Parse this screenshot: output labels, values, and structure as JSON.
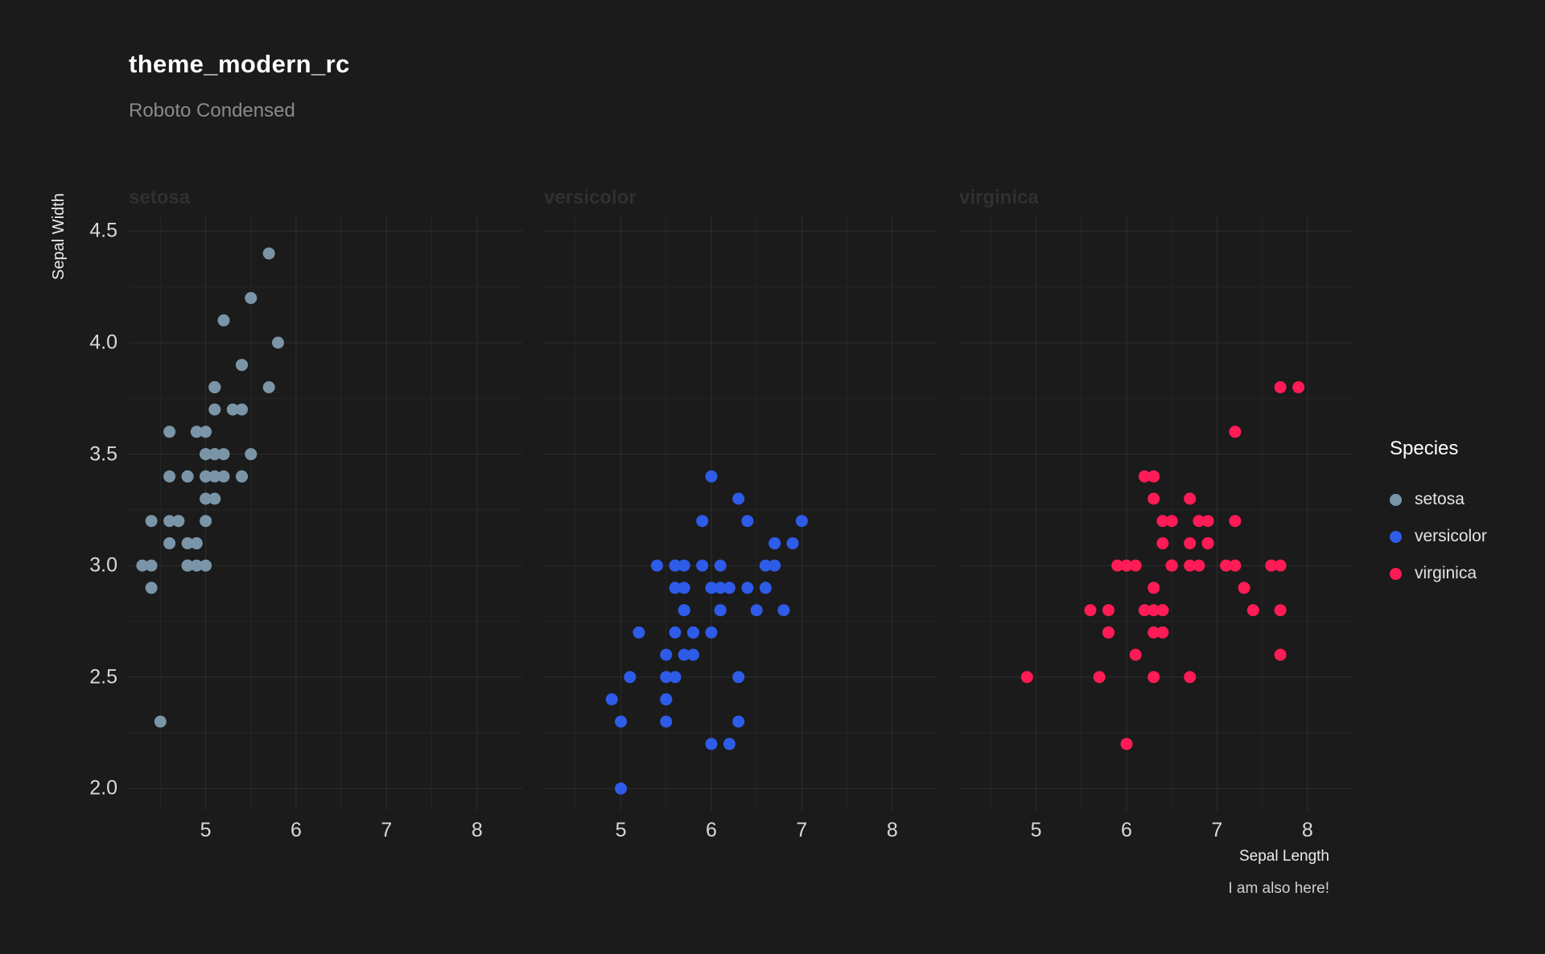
{
  "title": "theme_modern_rc",
  "subtitle": "Roboto Condensed",
  "caption": "I am also here!",
  "axes": {
    "x_label": "Sepal Length",
    "y_label": "Sepal Width"
  },
  "legend": {
    "title": "Species",
    "items": [
      {
        "label": "setosa",
        "color": "#7A95A7"
      },
      {
        "label": "versicolor",
        "color": "#2E5BE8"
      },
      {
        "label": "virginica",
        "color": "#FF1B55"
      }
    ]
  },
  "colors": {
    "background": "#1b1b1b",
    "grid_major": "#2e2e2e",
    "grid_minor": "#252525",
    "title": "#ffffff",
    "subtitle": "#8a8a8a",
    "axis_text": "#d9d9d9",
    "strip_text": "#303030",
    "setosa": "#7A95A7",
    "versicolor": "#2E5BE8",
    "virginica": "#FF1B55"
  },
  "chart_data": {
    "type": "scatter",
    "facets": [
      "setosa",
      "versicolor",
      "virginica"
    ],
    "x_ticks": [
      5,
      6,
      7,
      8
    ],
    "x_tick_labels": [
      "5",
      "6",
      "7",
      "8"
    ],
    "y_ticks": [
      2.0,
      2.5,
      3.0,
      3.5,
      4.0,
      4.5
    ],
    "y_tick_labels": [
      "2.0",
      "2.5",
      "3.0",
      "3.5",
      "4.0",
      "4.5"
    ],
    "xlim": [
      4.15,
      8.5
    ],
    "ylim": [
      1.9,
      4.57
    ],
    "xlabel": "Sepal Length",
    "ylabel": "Sepal Width",
    "grid": true,
    "legend_position": "right",
    "series": [
      {
        "name": "setosa",
        "color": "#7A95A7",
        "points": [
          [
            5.1,
            3.5
          ],
          [
            4.9,
            3.0
          ],
          [
            4.7,
            3.2
          ],
          [
            4.6,
            3.1
          ],
          [
            5.0,
            3.6
          ],
          [
            5.4,
            3.9
          ],
          [
            4.6,
            3.4
          ],
          [
            5.0,
            3.4
          ],
          [
            4.4,
            2.9
          ],
          [
            4.9,
            3.1
          ],
          [
            5.4,
            3.7
          ],
          [
            4.8,
            3.4
          ],
          [
            4.8,
            3.0
          ],
          [
            4.3,
            3.0
          ],
          [
            5.8,
            4.0
          ],
          [
            5.7,
            4.4
          ],
          [
            5.4,
            3.9
          ],
          [
            5.1,
            3.5
          ],
          [
            5.7,
            3.8
          ],
          [
            5.1,
            3.8
          ],
          [
            5.4,
            3.4
          ],
          [
            5.1,
            3.7
          ],
          [
            4.6,
            3.6
          ],
          [
            5.1,
            3.3
          ],
          [
            4.8,
            3.4
          ],
          [
            5.0,
            3.0
          ],
          [
            5.0,
            3.4
          ],
          [
            5.2,
            3.5
          ],
          [
            5.2,
            3.4
          ],
          [
            4.7,
            3.2
          ],
          [
            4.8,
            3.1
          ],
          [
            5.4,
            3.4
          ],
          [
            5.2,
            4.1
          ],
          [
            5.5,
            4.2
          ],
          [
            4.9,
            3.1
          ],
          [
            5.0,
            3.2
          ],
          [
            5.5,
            3.5
          ],
          [
            4.9,
            3.6
          ],
          [
            4.4,
            3.0
          ],
          [
            5.1,
            3.4
          ],
          [
            5.0,
            3.5
          ],
          [
            4.5,
            2.3
          ],
          [
            4.4,
            3.2
          ],
          [
            5.0,
            3.5
          ],
          [
            5.1,
            3.8
          ],
          [
            4.8,
            3.0
          ],
          [
            5.1,
            3.8
          ],
          [
            4.6,
            3.2
          ],
          [
            5.3,
            3.7
          ],
          [
            5.0,
            3.3
          ]
        ]
      },
      {
        "name": "versicolor",
        "color": "#2E5BE8",
        "points": [
          [
            7.0,
            3.2
          ],
          [
            6.4,
            3.2
          ],
          [
            6.9,
            3.1
          ],
          [
            5.5,
            2.3
          ],
          [
            6.5,
            2.8
          ],
          [
            5.7,
            2.8
          ],
          [
            6.3,
            3.3
          ],
          [
            4.9,
            2.4
          ],
          [
            6.6,
            2.9
          ],
          [
            5.2,
            2.7
          ],
          [
            5.0,
            2.0
          ],
          [
            5.9,
            3.0
          ],
          [
            6.0,
            2.2
          ],
          [
            6.1,
            2.9
          ],
          [
            5.6,
            2.9
          ],
          [
            6.7,
            3.1
          ],
          [
            5.6,
            3.0
          ],
          [
            5.8,
            2.7
          ],
          [
            6.2,
            2.2
          ],
          [
            5.6,
            2.5
          ],
          [
            5.9,
            3.2
          ],
          [
            6.1,
            2.8
          ],
          [
            6.3,
            2.5
          ],
          [
            6.1,
            2.8
          ],
          [
            6.4,
            2.9
          ],
          [
            6.6,
            3.0
          ],
          [
            6.8,
            2.8
          ],
          [
            6.7,
            3.0
          ],
          [
            6.0,
            2.9
          ],
          [
            5.7,
            2.6
          ],
          [
            5.5,
            2.4
          ],
          [
            5.5,
            2.4
          ],
          [
            5.8,
            2.7
          ],
          [
            6.0,
            2.7
          ],
          [
            5.4,
            3.0
          ],
          [
            6.0,
            3.4
          ],
          [
            6.7,
            3.1
          ],
          [
            6.3,
            2.3
          ],
          [
            5.6,
            3.0
          ],
          [
            5.5,
            2.5
          ],
          [
            5.5,
            2.6
          ],
          [
            6.1,
            3.0
          ],
          [
            5.8,
            2.6
          ],
          [
            5.0,
            2.3
          ],
          [
            5.6,
            2.7
          ],
          [
            5.7,
            3.0
          ],
          [
            5.7,
            2.9
          ],
          [
            6.2,
            2.9
          ],
          [
            5.1,
            2.5
          ],
          [
            5.7,
            2.8
          ]
        ]
      },
      {
        "name": "virginica",
        "color": "#FF1B55",
        "points": [
          [
            6.3,
            3.3
          ],
          [
            5.8,
            2.7
          ],
          [
            7.1,
            3.0
          ],
          [
            6.3,
            2.9
          ],
          [
            6.5,
            3.0
          ],
          [
            7.6,
            3.0
          ],
          [
            4.9,
            2.5
          ],
          [
            7.3,
            2.9
          ],
          [
            6.7,
            2.5
          ],
          [
            7.2,
            3.6
          ],
          [
            6.5,
            3.2
          ],
          [
            6.4,
            2.7
          ],
          [
            6.8,
            3.0
          ],
          [
            5.7,
            2.5
          ],
          [
            5.8,
            2.8
          ],
          [
            6.4,
            3.2
          ],
          [
            6.5,
            3.0
          ],
          [
            7.7,
            3.8
          ],
          [
            7.7,
            2.6
          ],
          [
            6.0,
            2.2
          ],
          [
            6.9,
            3.2
          ],
          [
            5.6,
            2.8
          ],
          [
            7.7,
            2.8
          ],
          [
            6.3,
            2.7
          ],
          [
            6.7,
            3.3
          ],
          [
            7.2,
            3.2
          ],
          [
            6.2,
            2.8
          ],
          [
            6.1,
            3.0
          ],
          [
            6.4,
            2.8
          ],
          [
            7.2,
            3.0
          ],
          [
            7.4,
            2.8
          ],
          [
            7.9,
            3.8
          ],
          [
            6.4,
            2.8
          ],
          [
            6.3,
            2.8
          ],
          [
            6.1,
            2.6
          ],
          [
            7.7,
            3.0
          ],
          [
            6.3,
            3.4
          ],
          [
            6.4,
            3.1
          ],
          [
            6.0,
            3.0
          ],
          [
            6.9,
            3.1
          ],
          [
            6.7,
            3.1
          ],
          [
            6.9,
            3.1
          ],
          [
            5.8,
            2.7
          ],
          [
            6.8,
            3.2
          ],
          [
            6.7,
            3.3
          ],
          [
            6.7,
            3.0
          ],
          [
            6.3,
            2.5
          ],
          [
            6.5,
            3.0
          ],
          [
            6.2,
            3.4
          ],
          [
            5.9,
            3.0
          ]
        ]
      }
    ]
  }
}
